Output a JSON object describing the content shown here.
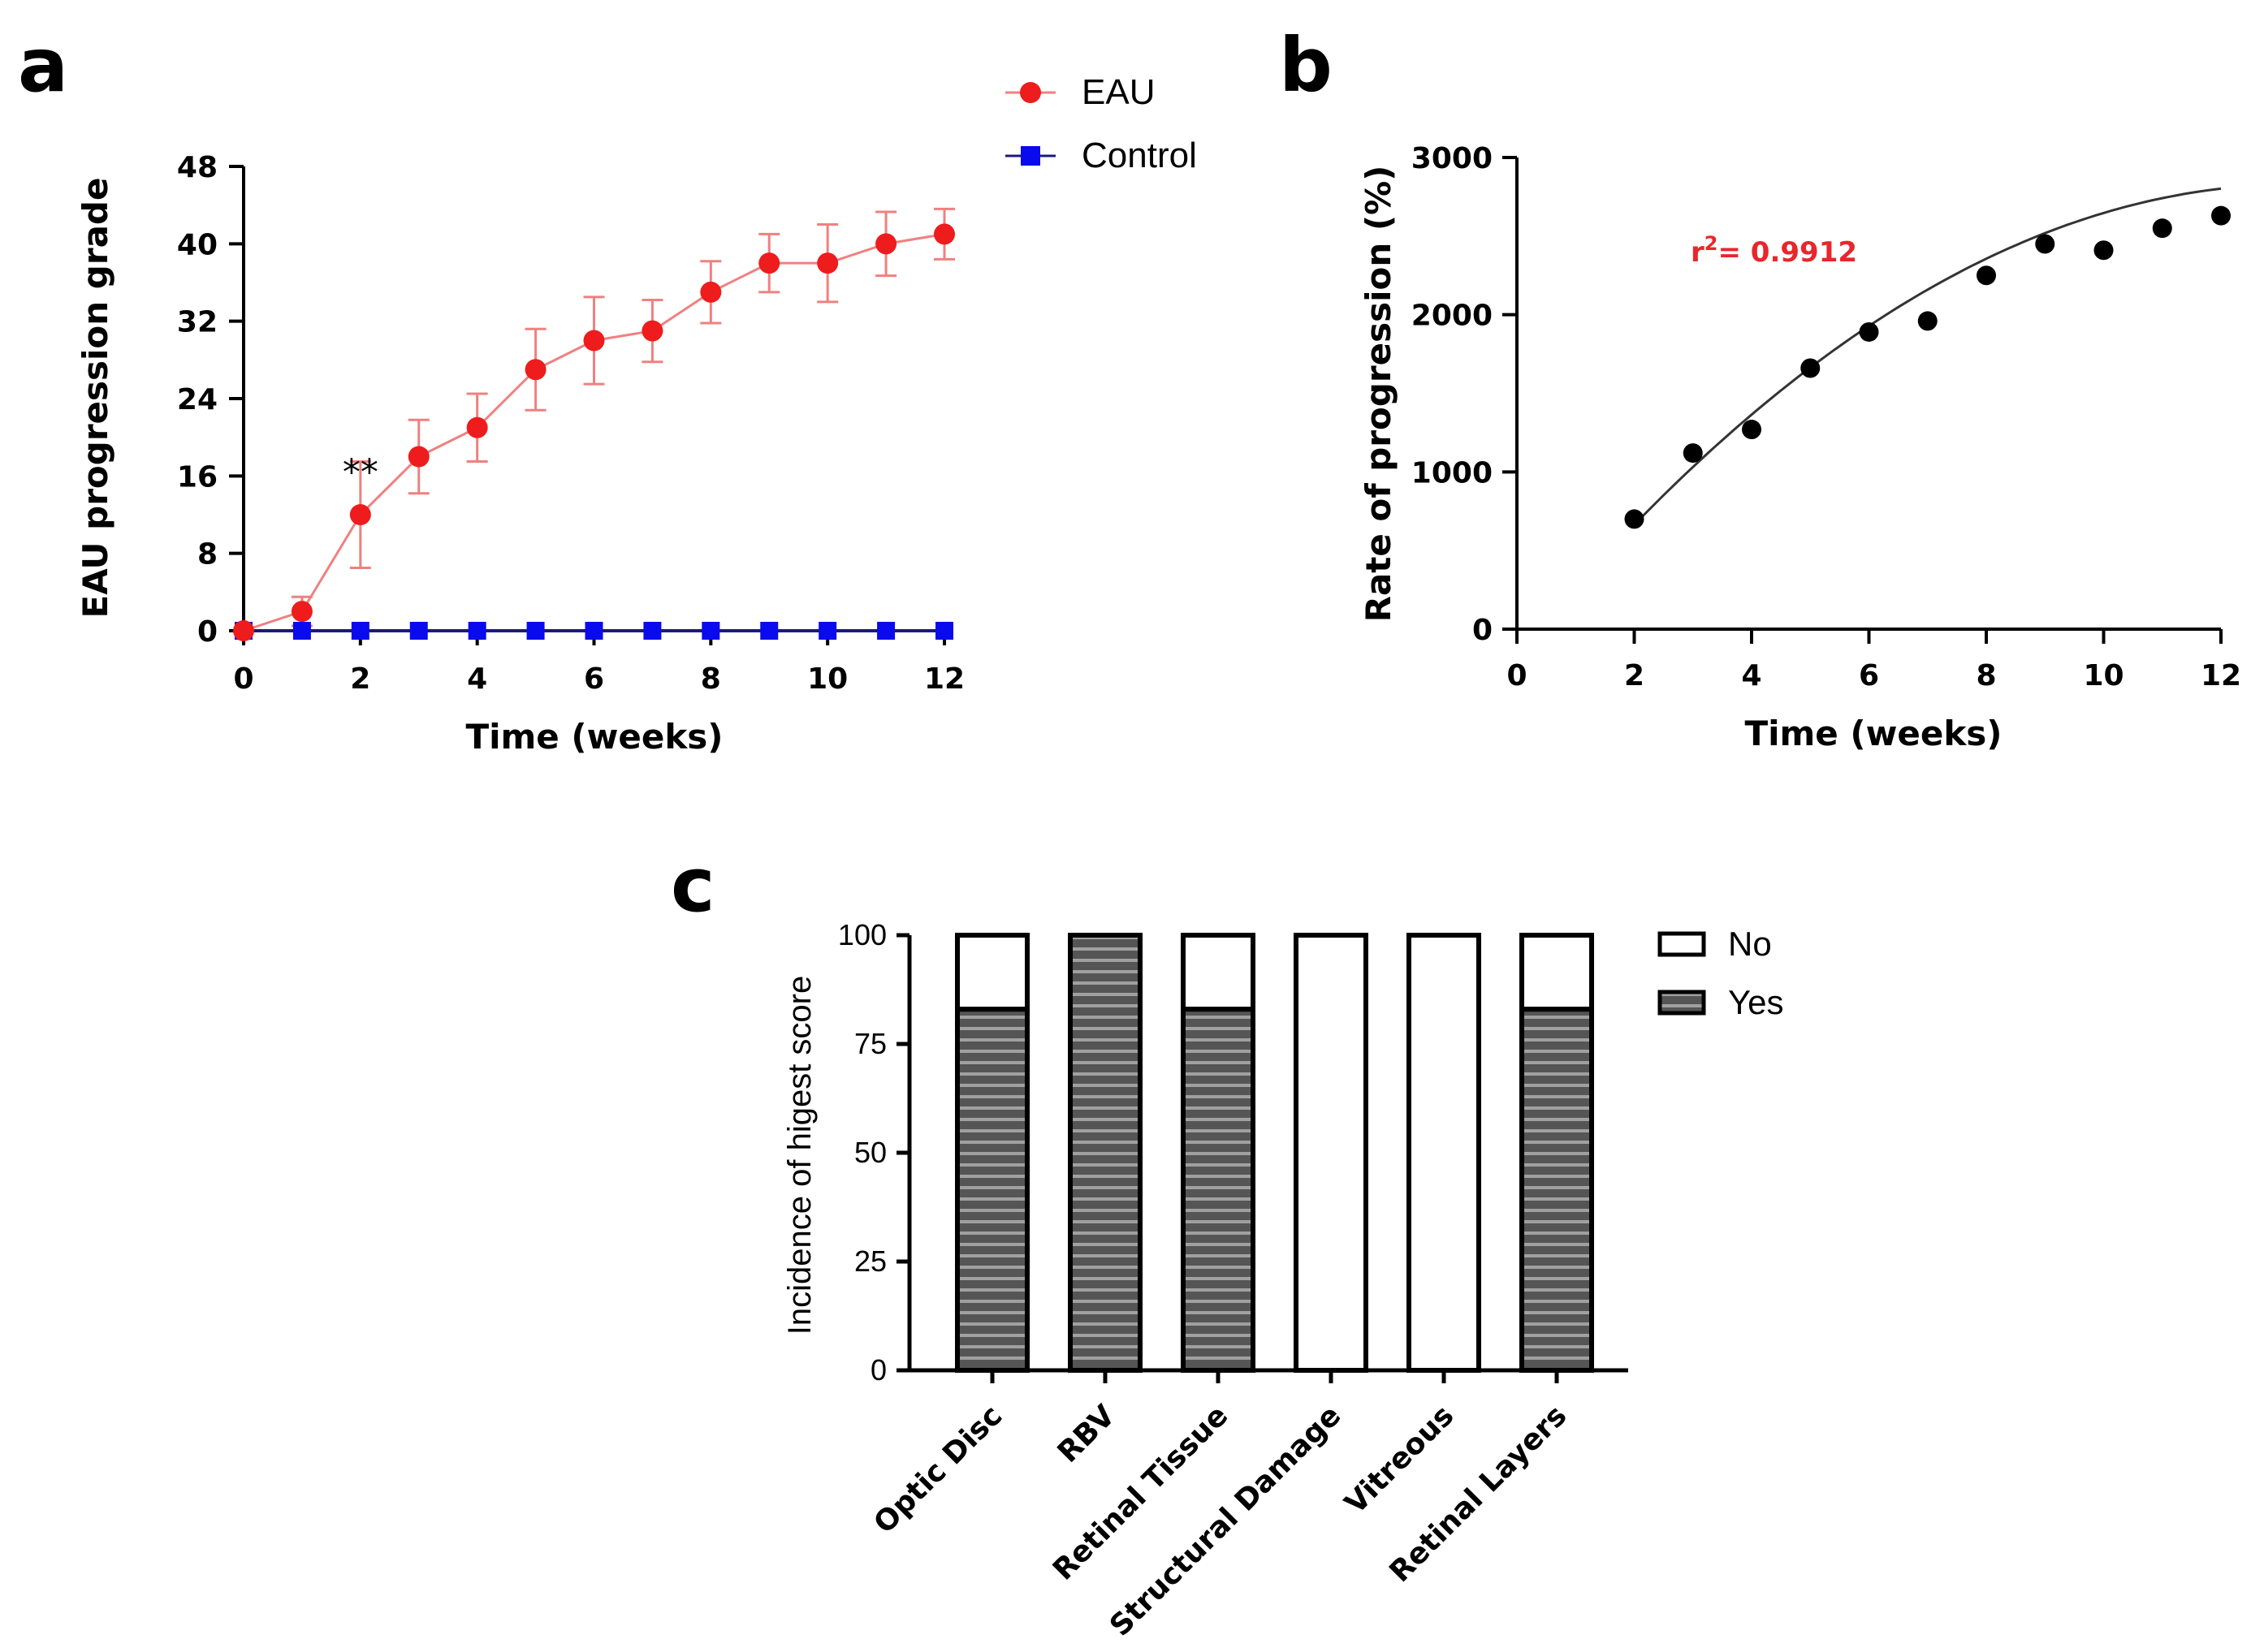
{
  "panels": {
    "a": "a",
    "b": "b",
    "c": "c"
  },
  "colors": {
    "eau": "#ee1c1c",
    "eau_line": "#f08080",
    "control": "#0a0aee",
    "control_line": "#1a1a7a",
    "r2": "#e8262b",
    "yes_fill": "#555555",
    "yes_stripe": "#9a9a9a",
    "fit_line": "#333333"
  },
  "chart_data": [
    {
      "id": "a",
      "type": "line",
      "title": "",
      "xlabel": "Time (weeks)",
      "ylabel": "EAU progression grade",
      "xlim": [
        0,
        12
      ],
      "ylim": [
        0,
        48
      ],
      "xticks": [
        0,
        2,
        4,
        6,
        8,
        10,
        12
      ],
      "yticks": [
        0,
        8,
        16,
        24,
        32,
        40,
        48
      ],
      "x": [
        0,
        1,
        2,
        3,
        4,
        5,
        6,
        7,
        8,
        9,
        10,
        11,
        12
      ],
      "series": [
        {
          "name": "EAU",
          "marker": "circle",
          "values": [
            0,
            2,
            12,
            18,
            21,
            27,
            30,
            31,
            35,
            38,
            38,
            40,
            41
          ],
          "errors": [
            0,
            1.5,
            5.5,
            3.8,
            3.5,
            4.2,
            4.5,
            3.2,
            3.2,
            3.0,
            4.0,
            3.3,
            2.6
          ]
        },
        {
          "name": "Control",
          "marker": "square",
          "values": [
            0,
            0,
            0,
            0,
            0,
            0,
            0,
            0,
            0,
            0,
            0,
            0,
            0
          ]
        }
      ],
      "legend": [
        "EAU",
        "Control"
      ],
      "annotations": [
        {
          "text": "**",
          "x": 2,
          "y": 18
        }
      ]
    },
    {
      "id": "b",
      "type": "scatter",
      "title": "",
      "xlabel": "Time (weeks)",
      "ylabel": "Rate of progression (%)",
      "xlim": [
        0,
        12
      ],
      "ylim": [
        0,
        3000
      ],
      "xticks": [
        0,
        2,
        4,
        6,
        8,
        10,
        12
      ],
      "yticks": [
        0,
        1000,
        2000,
        3000
      ],
      "x": [
        2,
        3,
        4,
        5,
        6,
        7,
        8,
        9,
        10,
        11,
        12
      ],
      "y": [
        700,
        1120,
        1270,
        1660,
        1890,
        1960,
        2250,
        2450,
        2410,
        2550,
        2630
      ],
      "fit": {
        "type": "quadratic",
        "coefficients": [
          -173,
          452.6,
          -17.06
        ],
        "x_range": [
          2,
          12
        ]
      },
      "annotation": {
        "prefix": "r",
        "superscript": "2",
        "text": "= 0.9912"
      }
    },
    {
      "id": "c",
      "type": "bar",
      "stacked": true,
      "title": "",
      "xlabel": "",
      "ylabel": "Incidence of higest score",
      "ylim": [
        0,
        100
      ],
      "yticks": [
        0,
        25,
        50,
        75,
        100
      ],
      "categories": [
        "Optic Disc",
        "RBV",
        "Retinal Tissue",
        "Structural Damage",
        "Vitreous",
        "Retinal Layers"
      ],
      "series": [
        {
          "name": "Yes",
          "values": [
            83,
            100,
            83,
            0,
            0,
            83
          ]
        },
        {
          "name": "No",
          "values": [
            17,
            0,
            17,
            100,
            100,
            17
          ]
        }
      ],
      "legend": [
        "No",
        "Yes"
      ]
    }
  ]
}
